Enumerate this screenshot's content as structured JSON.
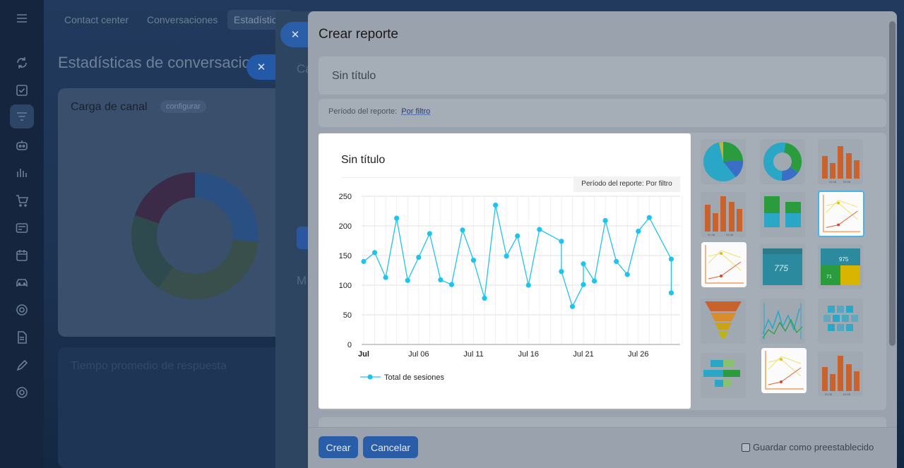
{
  "sidebar": {
    "icons": [
      "refresh-icon",
      "checkbox-icon",
      "filter-icon",
      "robot-icon",
      "bar-chart-icon",
      "cart-icon",
      "card-icon",
      "calendar-icon",
      "car-icon",
      "target-icon",
      "document-icon",
      "pen-icon",
      "settings-icon"
    ]
  },
  "background": {
    "tabs": [
      "Contact center",
      "Conversaciones",
      "Estadísticas"
    ],
    "page_title": "Estadísticas de conversaciones",
    "card1": {
      "title": "Carga de canal",
      "configure": "configurar"
    },
    "card2": {
      "title": "Tiempo promedio de respuesta"
    },
    "panel_partial_letters": [
      "Ca",
      "M"
    ]
  },
  "modal": {
    "title": "Crear reporte",
    "name_value": "Sin título",
    "period_label": "Período del reporte:",
    "period_value": "Por filtro",
    "create_button": "Crear",
    "cancel_button": "Cancelar",
    "save_default_label": "Guardar como preestablecido",
    "close_icon": "close-icon"
  },
  "gallery": {
    "thumbnails": [
      "pie-chart",
      "donut-chart",
      "bar-chart",
      "bar-chart",
      "stacked-bar-chart",
      "line-chart-selected",
      "line-chart-hover",
      "number-widget",
      "number-grid-widget",
      "funnel-chart",
      "line-graph",
      "heatmap",
      "table-comparison",
      "line-chart-white",
      "bar-chart"
    ],
    "thumb_texts": {
      "number": "775",
      "grid_number": "975",
      "grid_sub": "71",
      "date_a": "01.06",
      "date_b": "02.06"
    }
  },
  "preview": {
    "title": "Sin título",
    "period": "Período del reporte: Por filtro"
  },
  "chart_data": {
    "type": "line",
    "title": "Sin título",
    "xlabel": "",
    "ylabel": "",
    "ylim": [
      0,
      250
    ],
    "yticks": [
      0,
      50,
      100,
      150,
      200,
      250
    ],
    "x_range": [
      "Jul 1",
      "Jul 30"
    ],
    "x_tick_labels": [
      {
        "day": 1,
        "label": "Jul"
      },
      {
        "day": 6,
        "label": "Jul 06"
      },
      {
        "day": 11,
        "label": "Jul 11"
      },
      {
        "day": 16,
        "label": "Jul 16"
      },
      {
        "day": 21,
        "label": "Jul 21"
      },
      {
        "day": 26,
        "label": "Jul 26"
      }
    ],
    "grid": true,
    "legend": "bottom-left",
    "color": "#1ec3ee",
    "series": [
      {
        "name": "Total de sesiones",
        "points": [
          [
            1,
            140
          ],
          [
            2,
            155
          ],
          [
            3,
            113
          ],
          [
            4,
            213
          ],
          [
            5,
            108
          ],
          [
            6,
            147
          ],
          [
            7,
            187
          ],
          [
            8,
            109
          ],
          [
            9,
            101
          ],
          [
            10,
            193
          ],
          [
            11,
            142
          ],
          [
            12,
            78
          ],
          [
            13,
            235
          ],
          [
            14,
            149
          ],
          [
            15,
            183
          ],
          [
            16,
            100
          ],
          [
            17,
            194
          ],
          [
            19,
            174
          ],
          [
            19,
            123
          ],
          [
            20,
            64
          ],
          [
            21,
            101
          ],
          [
            21,
            136
          ],
          [
            22,
            107
          ],
          [
            23,
            209
          ],
          [
            24,
            140
          ],
          [
            25,
            118
          ],
          [
            26,
            191
          ],
          [
            27,
            214
          ],
          [
            29,
            144
          ],
          [
            29,
            87
          ]
        ]
      }
    ]
  }
}
